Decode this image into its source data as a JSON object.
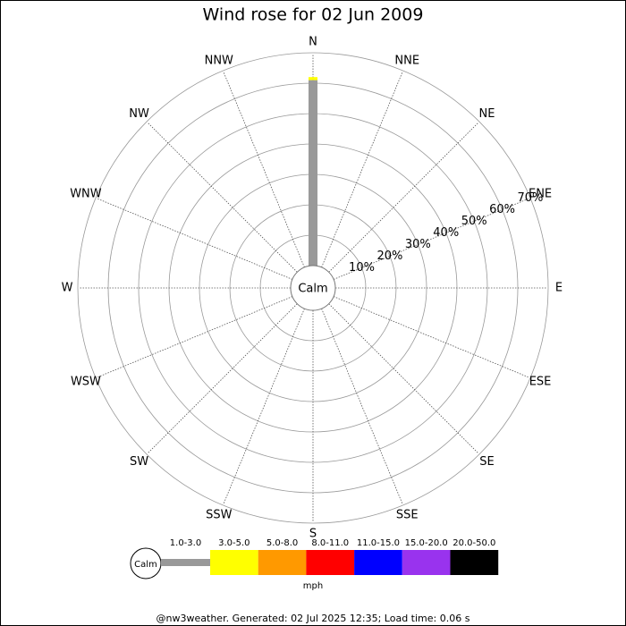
{
  "chart_data": {
    "type": "windrose",
    "title": "Wind rose for 02 Jun 2009",
    "directions": [
      "N",
      "NNE",
      "NE",
      "ENE",
      "E",
      "ESE",
      "SE",
      "SSE",
      "S",
      "SSW",
      "SW",
      "WSW",
      "W",
      "WNW",
      "NW",
      "NNW"
    ],
    "calm_label": "Calm",
    "rlim": [
      0,
      70
    ],
    "rticks": [
      {
        "value": 10,
        "label": "10%"
      },
      {
        "value": 20,
        "label": "20%"
      },
      {
        "value": 30,
        "label": "30%"
      },
      {
        "value": 40,
        "label": "40%"
      },
      {
        "value": 50,
        "label": "50%"
      },
      {
        "value": 60,
        "label": "60%"
      },
      {
        "value": 70,
        "label": "70%"
      }
    ],
    "series": [
      {
        "name": "1.0-3.0",
        "color": "#999999",
        "values": [
          61,
          0,
          0,
          0,
          0,
          0,
          0,
          0,
          0,
          0,
          0,
          0,
          0,
          0,
          0,
          0
        ]
      },
      {
        "name": "3.0-5.0",
        "color": "#ffff00",
        "values": [
          1,
          0,
          0,
          0,
          0,
          0,
          0,
          0,
          0,
          0,
          0,
          0,
          0,
          0,
          0,
          0
        ]
      },
      {
        "name": "5.0-8.0",
        "color": "#ff9900",
        "values": [
          0,
          0,
          0,
          0,
          0,
          0,
          0,
          0,
          0,
          0,
          0,
          0,
          0,
          0,
          0,
          0
        ]
      },
      {
        "name": "8.0-11.0",
        "color": "#ff0000",
        "values": [
          0,
          0,
          0,
          0,
          0,
          0,
          0,
          0,
          0,
          0,
          0,
          0,
          0,
          0,
          0,
          0
        ]
      },
      {
        "name": "11.0-15.0",
        "color": "#0000ff",
        "values": [
          0,
          0,
          0,
          0,
          0,
          0,
          0,
          0,
          0,
          0,
          0,
          0,
          0,
          0,
          0,
          0
        ]
      },
      {
        "name": "15.0-20.0",
        "color": "#9933ee",
        "values": [
          0,
          0,
          0,
          0,
          0,
          0,
          0,
          0,
          0,
          0,
          0,
          0,
          0,
          0,
          0,
          0
        ]
      },
      {
        "name": "20.0-50.0",
        "color": "#000000",
        "values": [
          0,
          0,
          0,
          0,
          0,
          0,
          0,
          0,
          0,
          0,
          0,
          0,
          0,
          0,
          0,
          0
        ]
      }
    ],
    "legend_unit": "mph",
    "footer": "@nw3weather.  Generated: 02 Jul 2025 12:35; Load time: 0.06 s"
  }
}
